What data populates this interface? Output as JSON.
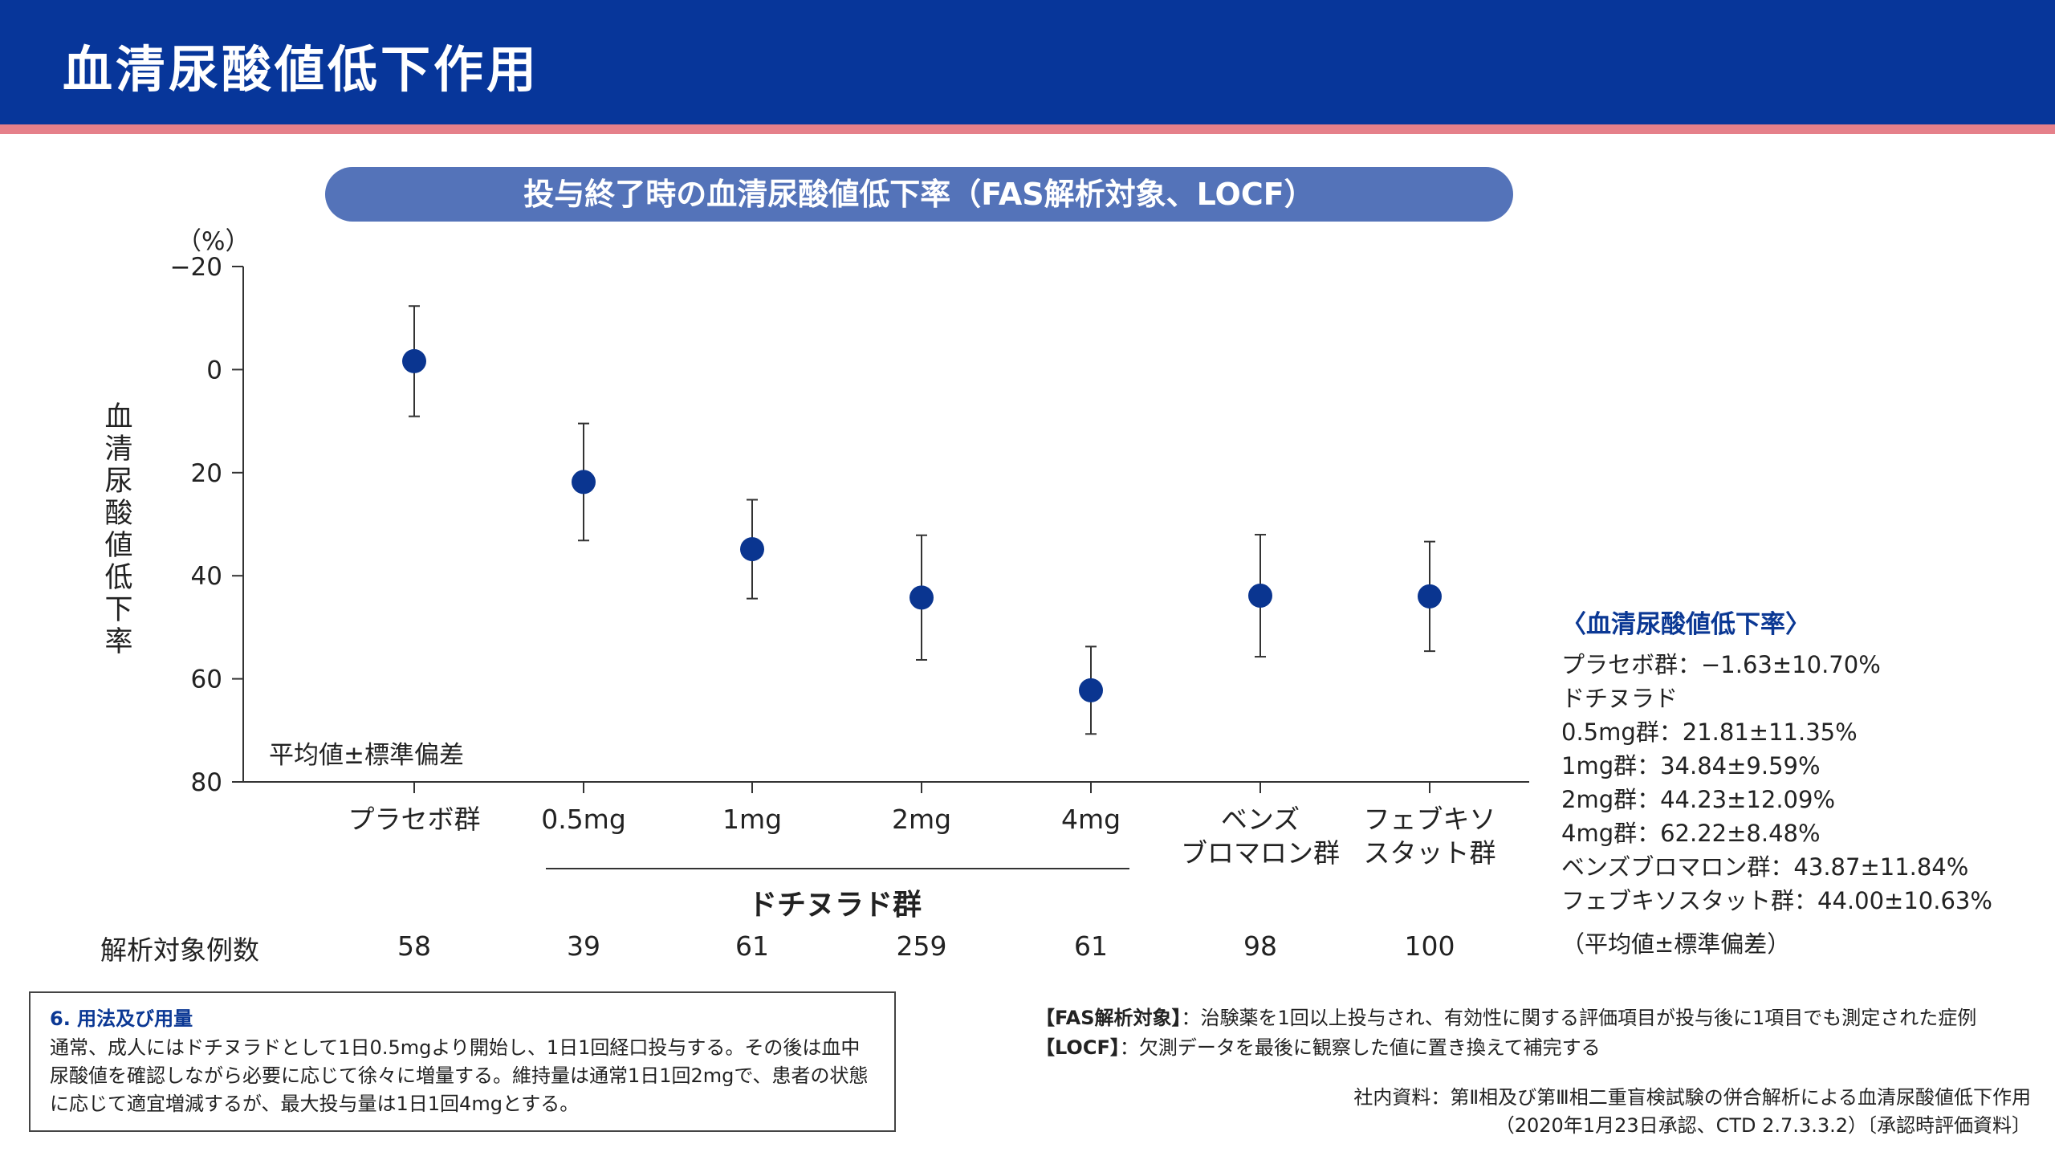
{
  "header": {
    "title": "血清尿酸値低下作用"
  },
  "chart_data": {
    "type": "scatter",
    "title": "投与終了時の血清尿酸値低下率（FAS解析対象、LOCF）",
    "y_unit": "（%）",
    "ylabel": "血清尿酸値低下率",
    "ylim": [
      -20,
      80
    ],
    "y_inverted": true,
    "yticks": [
      -20,
      0,
      20,
      40,
      60,
      80
    ],
    "ytick_labels": [
      "−20",
      "0",
      "20",
      "40",
      "60",
      "80"
    ],
    "categories": [
      "プラセボ群",
      "0.5mg",
      "1mg",
      "2mg",
      "4mg",
      "ベンズ\nブロマロン群",
      "フェブキソ\nスタット群"
    ],
    "mean": [
      -1.63,
      21.81,
      34.84,
      44.23,
      62.22,
      43.87,
      44.0
    ],
    "sd": [
      10.7,
      11.35,
      9.59,
      12.09,
      8.48,
      11.84,
      10.63
    ],
    "error_bar_note": "平均値±標準偏差",
    "group_label": "ドチヌラド群",
    "n_label": "解析対象例数",
    "n": [
      "58",
      "39",
      "61",
      "259",
      "61",
      "98",
      "100"
    ],
    "marker_color": "#0a3590"
  },
  "legend": {
    "title": "〈血清尿酸値低下率〉",
    "lines": [
      "プラセボ群：−1.63±10.70%",
      "ドチヌラド",
      "0.5mg群：21.81±11.35%",
      "1mg群：34.84±9.59%",
      "2mg群：44.23±12.09%",
      "4mg群：62.22±8.48%",
      "ベンズブロマロン群：43.87±11.84%",
      "フェブキソスタット群：44.00±10.63%"
    ],
    "footer": "（平均値±標準偏差）"
  },
  "dosage": {
    "title": "6. 用法及び用量",
    "body": "通常、成人にはドチヌラドとして1日0.5mgより開始し、1日1回経口投与する。その後は血中尿酸値を確認しながら必要に応じて徐々に増量する。維持量は通常1日1回2mgで、患者の状態に応じて適宜増減するが、最大投与量は1日1回4mgとする。"
  },
  "definitions": {
    "fas_term": "【FAS解析対象】",
    "fas_text": "：治験薬を1回以上投与され、有効性に関する評価項目が投与後に1項目でも測定された症例",
    "locf_term": "【LOCF】",
    "locf_text": "：欠測データを最後に観察した値に置き換えて補完する"
  },
  "source": {
    "line1": "社内資料：第Ⅱ相及び第Ⅲ相二重盲検試験の併合解析による血清尿酸値低下作用",
    "line2": "（2020年1月23日承認、CTD 2.7.3.3.2）〔承認時評価資料〕"
  }
}
